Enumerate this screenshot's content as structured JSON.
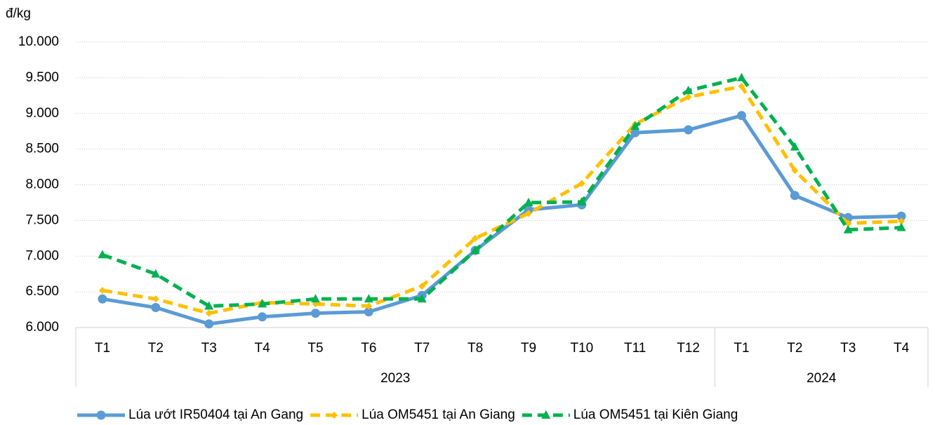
{
  "chart_data": {
    "type": "line",
    "y_unit": "đ/kg",
    "category_groups": [
      {
        "label": "2023",
        "categories": [
          "T1",
          "T2",
          "T3",
          "T4",
          "T5",
          "T6",
          "T7",
          "T8",
          "T9",
          "T10",
          "T11",
          "T12"
        ]
      },
      {
        "label": "2024",
        "categories": [
          "T1",
          "T2",
          "T3",
          "T4"
        ]
      }
    ],
    "ylim": [
      6000,
      10000
    ],
    "yticks": [
      {
        "value": 6000,
        "label": "6.000"
      },
      {
        "value": 6500,
        "label": "6.500"
      },
      {
        "value": 7000,
        "label": "7.000"
      },
      {
        "value": 7500,
        "label": "7.500"
      },
      {
        "value": 8000,
        "label": "8.000"
      },
      {
        "value": 8500,
        "label": "8.500"
      },
      {
        "value": 9000,
        "label": "9.000"
      },
      {
        "value": 9500,
        "label": "9.500"
      },
      {
        "value": 10000,
        "label": "10.000"
      }
    ],
    "grid": true,
    "legend": "bottom",
    "series": [
      {
        "name": "Lúa ướt IR50404 tại An Gang",
        "color": "#5b9bd5",
        "marker": "circle",
        "dashed": false,
        "values": [
          6400,
          6280,
          6050,
          6150,
          6200,
          6220,
          6450,
          7080,
          7650,
          7720,
          8730,
          8770,
          8970,
          7850,
          7540,
          7560
        ]
      },
      {
        "name": "Lúa OM5451 tại An Giang",
        "color": "#ffc000",
        "marker": "diamond",
        "dashed": true,
        "values": [
          6520,
          6400,
          6200,
          6350,
          6330,
          6300,
          6580,
          7250,
          7600,
          8020,
          8850,
          9230,
          9380,
          8200,
          7460,
          7490
        ]
      },
      {
        "name": "Lúa OM5451 tại Kiên Giang",
        "color": "#00b050",
        "marker": "triangle",
        "dashed": true,
        "values": [
          7020,
          6750,
          6300,
          6330,
          6400,
          6400,
          6400,
          7080,
          7750,
          7760,
          8820,
          9320,
          9500,
          8530,
          7370,
          7400
        ]
      }
    ]
  }
}
